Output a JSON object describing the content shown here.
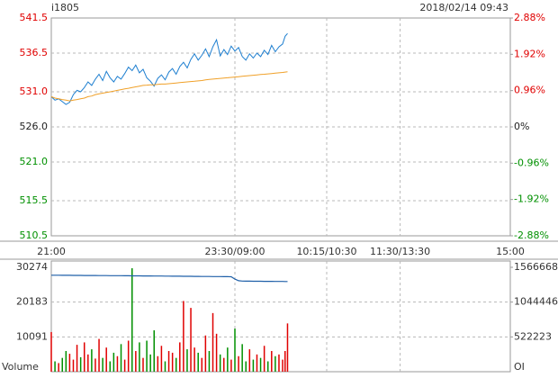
{
  "header": {
    "symbol": "i1805",
    "datetime": "2018/02/14 09:43"
  },
  "chart_data": [
    {
      "type": "line",
      "x": [
        0,
        3,
        6,
        9,
        12,
        15,
        18,
        21,
        24,
        27,
        30,
        33,
        36,
        39,
        42,
        45,
        48,
        51,
        54,
        57,
        60,
        63,
        66,
        69,
        72,
        75,
        78,
        81,
        84,
        87,
        90,
        93,
        96,
        99,
        102,
        105,
        108,
        111,
        114,
        117,
        120,
        123,
        126,
        129,
        132,
        135,
        138,
        141,
        144,
        147,
        150,
        153,
        156,
        159,
        162,
        165,
        168,
        171,
        174,
        177,
        180,
        183,
        186,
        189,
        191,
        193
      ],
      "series": [
        {
          "color": "#1e7fd0",
          "values": [
            530.3,
            529.8,
            530.0,
            529.6,
            529.2,
            529.5,
            530.6,
            531.2,
            531.0,
            531.6,
            532.4,
            531.9,
            532.8,
            533.5,
            532.6,
            533.9,
            533.0,
            532.4,
            533.2,
            532.8,
            533.6,
            534.5,
            534.0,
            534.8,
            533.7,
            534.2,
            533.0,
            532.5,
            531.8,
            532.9,
            533.4,
            532.7,
            533.8,
            534.3,
            533.5,
            534.6,
            535.2,
            534.4,
            535.6,
            536.4,
            535.5,
            536.2,
            537.1,
            536.0,
            537.4,
            538.4,
            536.1,
            537.0,
            536.3,
            537.5,
            536.8,
            537.3,
            536.0,
            535.5,
            536.4,
            535.8,
            536.5,
            536.0,
            536.9,
            536.3,
            537.6,
            536.7,
            537.4,
            537.8,
            538.9,
            539.3
          ]
        },
        {
          "color": "#f0a028",
          "values": [
            530.3,
            530.1,
            530.0,
            529.9,
            529.8,
            529.7,
            529.8,
            529.9,
            530.0,
            530.1,
            530.3,
            530.4,
            530.6,
            530.7,
            530.8,
            530.9,
            531.0,
            531.1,
            531.2,
            531.3,
            531.4,
            531.5,
            531.6,
            531.7,
            531.8,
            531.9,
            531.95,
            532.0,
            532.0,
            532.05,
            532.1,
            532.1,
            532.15,
            532.2,
            532.25,
            532.3,
            532.35,
            532.4,
            532.45,
            532.5,
            532.55,
            532.6,
            532.7,
            532.75,
            532.8,
            532.85,
            532.9,
            532.95,
            533.0,
            533.05,
            533.1,
            533.15,
            533.2,
            533.25,
            533.3,
            533.35,
            533.4,
            533.45,
            533.5,
            533.55,
            533.6,
            533.65,
            533.7,
            533.75,
            533.8,
            533.85
          ]
        }
      ],
      "up_color": "#e00000",
      "down_color": "#009000",
      "xlim": [
        0,
        375
      ],
      "xticks": [
        {
          "value": 0,
          "label": "21:00"
        },
        {
          "value": 150,
          "label": "23:30/09:00"
        },
        {
          "value": 225,
          "label": "10:15/10:30"
        },
        {
          "value": 285,
          "label": "11:30/13:30"
        },
        {
          "value": 375,
          "label": "15:00"
        }
      ],
      "ylim": [
        510.5,
        541.5
      ],
      "yticks": [
        541.5,
        536.5,
        {
          "value": 531,
          "label": "531.0"
        },
        {
          "value": 526,
          "label": "526.0"
        },
        {
          "value": 521,
          "label": "521.0"
        },
        515.5,
        510.5
      ],
      "y2lim": [
        -2.88,
        2.88
      ],
      "y2ticks": [
        {
          "value": 2.88,
          "label": "2.88%"
        },
        {
          "value": 1.92,
          "label": "1.92%"
        },
        {
          "value": 0.96,
          "label": "0.96%"
        },
        {
          "value": 0,
          "label": "0%"
        },
        {
          "value": -0.96,
          "label": "-0.96%"
        },
        {
          "value": -1.92,
          "label": "-1.92%"
        },
        {
          "value": -2.88,
          "label": "-2.88%"
        }
      ],
      "grid": true
    },
    {
      "type": "bar",
      "series": [
        {
          "name": "Volume",
          "values": [
            11500,
            3000,
            2500,
            4000,
            6000,
            5200,
            3500,
            7800,
            4200,
            8500,
            5000,
            6500,
            3800,
            9500,
            4000,
            7000,
            3000,
            5500,
            4500,
            8000,
            3500,
            9000,
            30000,
            6000,
            8500,
            4000,
            9000,
            5000,
            12000,
            4500,
            7500,
            3000,
            6000,
            5500,
            4000,
            8500,
            20500,
            6500,
            18500,
            7000,
            5500,
            4000,
            10500,
            6000,
            17000,
            11000,
            5000,
            4000,
            7000,
            3500,
            12500,
            4500,
            8000,
            3000,
            6500,
            3500,
            5000,
            4000,
            7500,
            3000,
            6000,
            4500,
            5000,
            3500,
            6000,
            14000
          ]
        },
        {
          "name": "OI",
          "axis": "y2",
          "color": "#1e5fa8",
          "values": [
            1448000,
            1447600,
            1447200,
            1446800,
            1446400,
            1446000,
            1445600,
            1445200,
            1444800,
            1444400,
            1444000,
            1443600,
            1443200,
            1442800,
            1442400,
            1442000,
            1441600,
            1441200,
            1440800,
            1440400,
            1440000,
            1439500,
            1439000,
            1438500,
            1438000,
            1437500,
            1437000,
            1436500,
            1436000,
            1435500,
            1435000,
            1434500,
            1434000,
            1433500,
            1433000,
            1432500,
            1432000,
            1431500,
            1431000,
            1430500,
            1430000,
            1429500,
            1429000,
            1428500,
            1428000,
            1427500,
            1427000,
            1426500,
            1426000,
            1425500,
            1390000,
            1365000,
            1360000,
            1359000,
            1358500,
            1358000,
            1357500,
            1357000,
            1356500,
            1356000,
            1355500,
            1355000,
            1354500,
            1354000,
            1353800,
            1353600
          ]
        }
      ],
      "ylim": [
        0,
        30274
      ],
      "yticks": [
        30274,
        20183,
        10091
      ],
      "y2lim": [
        0,
        1566668
      ],
      "y2ticks": [
        1566668,
        1044446,
        522223
      ],
      "grid": true
    }
  ]
}
